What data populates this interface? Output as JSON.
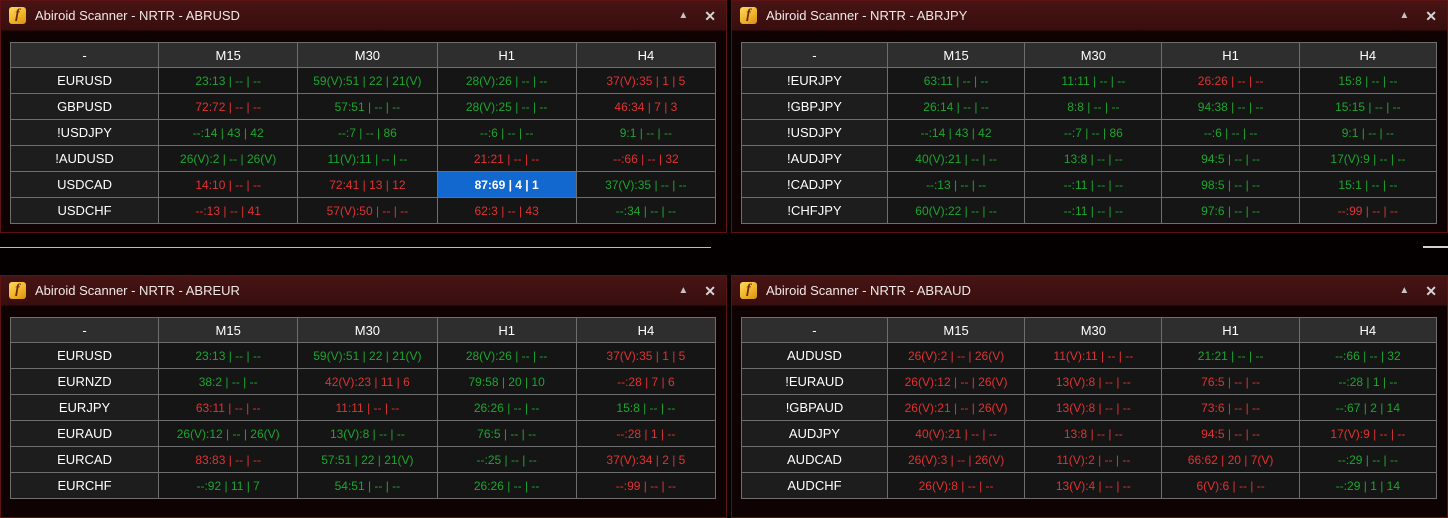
{
  "colors": {
    "green": "#1CA52F",
    "red": "#E03232",
    "white": "#FFFFFF",
    "highlight_bg": "#1268CF",
    "highlight_text": "#FFFFFF",
    "titlebar": "#421212"
  },
  "window": {
    "logo_glyph": "f",
    "minimize_glyph": "▲",
    "close_glyph": "✕"
  },
  "panels": [
    {
      "title": "Abiroid Scanner - NRTR - ABRUSD",
      "columns": [
        "-",
        "M15",
        "M30",
        "H1",
        "H4"
      ],
      "rows": [
        {
          "pair": "EURUSD",
          "cells": [
            {
              "text": "23:13 | -- | --",
              "color": "green"
            },
            {
              "text": "59(V):51 | 22 | 21(V)",
              "color": "green"
            },
            {
              "text": "28(V):26 | -- | --",
              "color": "green"
            },
            {
              "text": "37(V):35 | 1 | 5",
              "color": "red"
            }
          ]
        },
        {
          "pair": "GBPUSD",
          "cells": [
            {
              "text": "72:72 | -- | --",
              "color": "red"
            },
            {
              "text": "57:51 | -- | --",
              "color": "green"
            },
            {
              "text": "28(V):25 | -- | --",
              "color": "green"
            },
            {
              "text": "46:34 | 7 | 3",
              "color": "red"
            }
          ]
        },
        {
          "pair": "!USDJPY",
          "cells": [
            {
              "text": "--:14 | 43 | 42",
              "color": "green"
            },
            {
              "text": "--:7 | -- | 86",
              "color": "green"
            },
            {
              "text": "--:6 | -- | --",
              "color": "green"
            },
            {
              "text": "9:1 | -- | --",
              "color": "green"
            }
          ]
        },
        {
          "pair": "!AUDUSD",
          "cells": [
            {
              "text": "26(V):2 | -- | 26(V)",
              "color": "green"
            },
            {
              "text": "11(V):11 | -- | --",
              "color": "green"
            },
            {
              "text": "21:21 | -- | --",
              "color": "red"
            },
            {
              "text": "--:66 | -- | 32",
              "color": "red"
            }
          ]
        },
        {
          "pair": "USDCAD",
          "cells": [
            {
              "text": "14:10 | -- | --",
              "color": "red"
            },
            {
              "text": "72:41 | 13 | 12",
              "color": "red"
            },
            {
              "text": "87:69 | 4 | 1",
              "color": "white",
              "highlight": true
            },
            {
              "text": "37(V):35 | -- | --",
              "color": "green"
            }
          ]
        },
        {
          "pair": "USDCHF",
          "cells": [
            {
              "text": "--:13 | -- | 41",
              "color": "red"
            },
            {
              "text": "57(V):50 | -- | --",
              "color": "red"
            },
            {
              "text": "62:3 | -- | 43",
              "color": "red"
            },
            {
              "text": "--:34 | -- | --",
              "color": "green"
            }
          ]
        }
      ]
    },
    {
      "title": "Abiroid Scanner - NRTR - ABRJPY",
      "columns": [
        "-",
        "M15",
        "M30",
        "H1",
        "H4"
      ],
      "rows": [
        {
          "pair": "!EURJPY",
          "cells": [
            {
              "text": "63:11 | -- | --",
              "color": "green"
            },
            {
              "text": "11:11 | -- | --",
              "color": "green"
            },
            {
              "text": "26:26 | -- | --",
              "color": "red"
            },
            {
              "text": "15:8 | -- | --",
              "color": "green"
            }
          ]
        },
        {
          "pair": "!GBPJPY",
          "cells": [
            {
              "text": "26:14 | -- | --",
              "color": "green"
            },
            {
              "text": "8:8 | -- | --",
              "color": "green"
            },
            {
              "text": "94:38 | -- | --",
              "color": "green"
            },
            {
              "text": "15:15 | -- | --",
              "color": "green"
            }
          ]
        },
        {
          "pair": "!USDJPY",
          "cells": [
            {
              "text": "--:14 | 43 | 42",
              "color": "green"
            },
            {
              "text": "--:7 | -- | 86",
              "color": "green"
            },
            {
              "text": "--:6 | -- | --",
              "color": "green"
            },
            {
              "text": "9:1 | -- | --",
              "color": "green"
            }
          ]
        },
        {
          "pair": "!AUDJPY",
          "cells": [
            {
              "text": "40(V):21 | -- | --",
              "color": "green"
            },
            {
              "text": "13:8 | -- | --",
              "color": "green"
            },
            {
              "text": "94:5 | -- | --",
              "color": "green"
            },
            {
              "text": "17(V):9 | -- | --",
              "color": "green"
            }
          ]
        },
        {
          "pair": "!CADJPY",
          "cells": [
            {
              "text": "--:13 | -- | --",
              "color": "green"
            },
            {
              "text": "--:11 | -- | --",
              "color": "green"
            },
            {
              "text": "98:5 | -- | --",
              "color": "green"
            },
            {
              "text": "15:1 | -- | --",
              "color": "green"
            }
          ]
        },
        {
          "pair": "!CHFJPY",
          "cells": [
            {
              "text": "60(V):22 | -- | --",
              "color": "green"
            },
            {
              "text": "--:11 | -- | --",
              "color": "green"
            },
            {
              "text": "97:6 | -- | --",
              "color": "green"
            },
            {
              "text": "--:99 | -- | --",
              "color": "red"
            }
          ]
        }
      ]
    },
    {
      "title": "Abiroid Scanner - NRTR - ABREUR",
      "columns": [
        "-",
        "M15",
        "M30",
        "H1",
        "H4"
      ],
      "rows": [
        {
          "pair": "EURUSD",
          "cells": [
            {
              "text": "23:13 | -- | --",
              "color": "green"
            },
            {
              "text": "59(V):51 | 22 | 21(V)",
              "color": "green"
            },
            {
              "text": "28(V):26 | -- | --",
              "color": "green"
            },
            {
              "text": "37(V):35 | 1 | 5",
              "color": "red"
            }
          ]
        },
        {
          "pair": "EURNZD",
          "cells": [
            {
              "text": "38:2 | -- | --",
              "color": "green"
            },
            {
              "text": "42(V):23 | 11 | 6",
              "color": "red"
            },
            {
              "text": "79:58 | 20 | 10",
              "color": "green"
            },
            {
              "text": "--:28 | 7 | 6",
              "color": "red"
            }
          ]
        },
        {
          "pair": "EURJPY",
          "cells": [
            {
              "text": "63:11 | -- | --",
              "color": "red"
            },
            {
              "text": "11:11 | -- | --",
              "color": "red"
            },
            {
              "text": "26:26 | -- | --",
              "color": "green"
            },
            {
              "text": "15:8 | -- | --",
              "color": "green"
            }
          ]
        },
        {
          "pair": "EURAUD",
          "cells": [
            {
              "text": "26(V):12 | -- | 26(V)",
              "color": "green"
            },
            {
              "text": "13(V):8 | -- | --",
              "color": "green"
            },
            {
              "text": "76:5 | -- | --",
              "color": "green"
            },
            {
              "text": "--:28 | 1 | --",
              "color": "red"
            }
          ]
        },
        {
          "pair": "EURCAD",
          "cells": [
            {
              "text": "83:83 | -- | --",
              "color": "red"
            },
            {
              "text": "57:51 | 22 | 21(V)",
              "color": "green"
            },
            {
              "text": "--:25 | -- | --",
              "color": "green"
            },
            {
              "text": "37(V):34 | 2 | 5",
              "color": "red"
            }
          ]
        },
        {
          "pair": "EURCHF",
          "cells": [
            {
              "text": "--:92 | 11 | 7",
              "color": "green"
            },
            {
              "text": "54:51 | -- | --",
              "color": "green"
            },
            {
              "text": "26:26 | -- | --",
              "color": "green"
            },
            {
              "text": "--:99 | -- | --",
              "color": "red"
            }
          ]
        }
      ]
    },
    {
      "title": "Abiroid Scanner - NRTR - ABRAUD",
      "columns": [
        "-",
        "M15",
        "M30",
        "H1",
        "H4"
      ],
      "rows": [
        {
          "pair": "AUDUSD",
          "cells": [
            {
              "text": "26(V):2 | -- | 26(V)",
              "color": "red"
            },
            {
              "text": "11(V):11 | -- | --",
              "color": "red"
            },
            {
              "text": "21:21 | -- | --",
              "color": "green"
            },
            {
              "text": "--:66 | -- | 32",
              "color": "green"
            }
          ]
        },
        {
          "pair": "!EURAUD",
          "cells": [
            {
              "text": "26(V):12 | -- | 26(V)",
              "color": "red"
            },
            {
              "text": "13(V):8 | -- | --",
              "color": "red"
            },
            {
              "text": "76:5 | -- | --",
              "color": "red"
            },
            {
              "text": "--:28 | 1 | --",
              "color": "green"
            }
          ]
        },
        {
          "pair": "!GBPAUD",
          "cells": [
            {
              "text": "26(V):21 | -- | 26(V)",
              "color": "red"
            },
            {
              "text": "13(V):8 | -- | --",
              "color": "red"
            },
            {
              "text": "73:6 | -- | --",
              "color": "red"
            },
            {
              "text": "--:67 | 2 | 14",
              "color": "green"
            }
          ]
        },
        {
          "pair": "AUDJPY",
          "cells": [
            {
              "text": "40(V):21 | -- | --",
              "color": "red"
            },
            {
              "text": "13:8 | -- | --",
              "color": "red"
            },
            {
              "text": "94:5 | -- | --",
              "color": "red"
            },
            {
              "text": "17(V):9 | -- | --",
              "color": "red"
            }
          ]
        },
        {
          "pair": "AUDCAD",
          "cells": [
            {
              "text": "26(V):3 | -- | 26(V)",
              "color": "red"
            },
            {
              "text": "11(V):2 | -- | --",
              "color": "red"
            },
            {
              "text": "66:62 | 20 | 7(V)",
              "color": "red"
            },
            {
              "text": "--:29 | -- | --",
              "color": "green"
            }
          ]
        },
        {
          "pair": "AUDCHF",
          "cells": [
            {
              "text": "26(V):8 | -- | --",
              "color": "red"
            },
            {
              "text": "13(V):4 | -- | --",
              "color": "red"
            },
            {
              "text": "6(V):6 | -- | --",
              "color": "red"
            },
            {
              "text": "--:29 | 1 | 14",
              "color": "green"
            }
          ]
        }
      ]
    }
  ]
}
